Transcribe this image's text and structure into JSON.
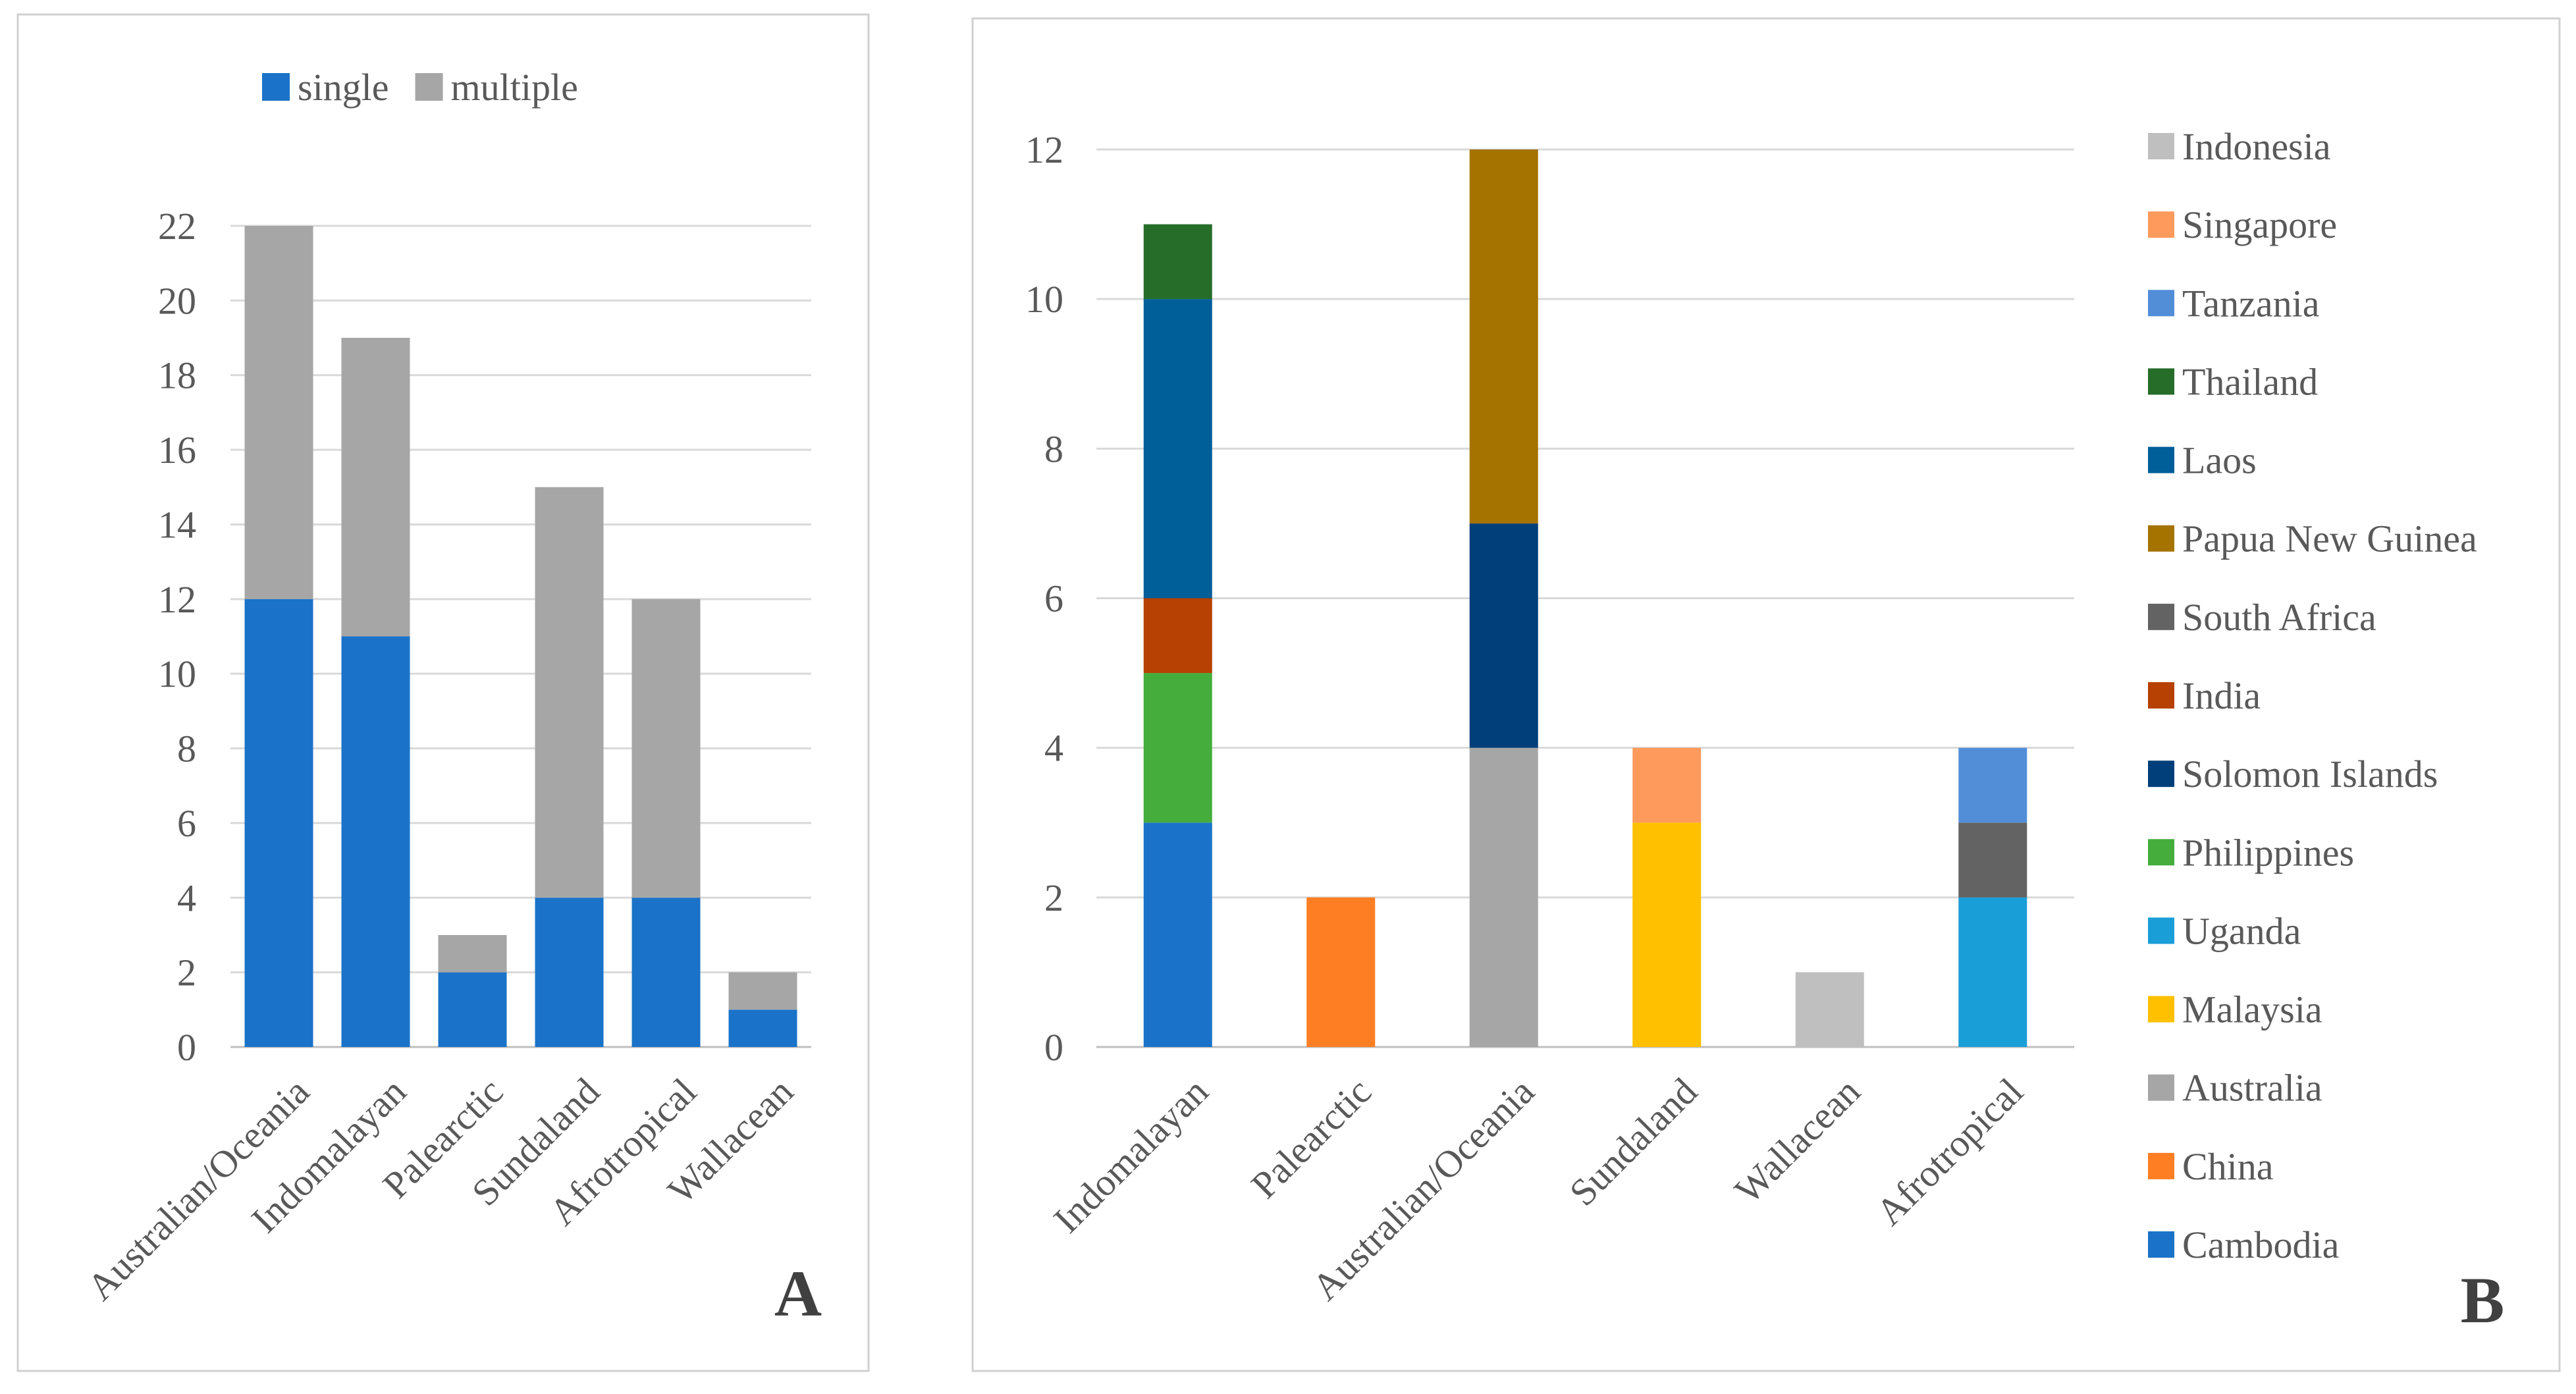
{
  "panels": [
    {
      "letter": "A",
      "chart_data": {
        "type": "bar",
        "stacked": true,
        "title": "",
        "xlabel": "",
        "ylabel": "",
        "ylim": [
          0,
          22
        ],
        "ytick_step": 2,
        "grid": true,
        "legend_position": "top",
        "categories": [
          "Australian/Oceania",
          "Indomalayan",
          "Palearctic",
          "Sundaland",
          "Afrotropical",
          "Wallacean"
        ],
        "series": [
          {
            "name": "single",
            "color": "#1a73c8",
            "values": [
              12,
              11,
              2,
              4,
              4,
              1
            ]
          },
          {
            "name": "multiple",
            "color": "#a6a6a6",
            "values": [
              10,
              8,
              1,
              11,
              8,
              1
            ]
          }
        ]
      }
    },
    {
      "letter": "B",
      "chart_data": {
        "type": "bar",
        "stacked": true,
        "title": "",
        "xlabel": "",
        "ylabel": "",
        "ylim": [
          0,
          12
        ],
        "ytick_step": 2,
        "grid": true,
        "legend_position": "right",
        "categories": [
          "Indomalayan",
          "Palearctic",
          "Australian/Oceania",
          "Sundaland",
          "Wallacean",
          "Afrotropical"
        ],
        "series": [
          {
            "name": "Cambodia",
            "color": "#1a73c8",
            "values": [
              3,
              0,
              0,
              0,
              0,
              0
            ]
          },
          {
            "name": "China",
            "color": "#fd7e23",
            "values": [
              0,
              2,
              0,
              0,
              0,
              0
            ]
          },
          {
            "name": "Australia",
            "color": "#a6a6a6",
            "values": [
              0,
              0,
              4,
              0,
              0,
              0
            ]
          },
          {
            "name": "Malaysia",
            "color": "#ffc000",
            "values": [
              0,
              0,
              0,
              3,
              0,
              0
            ]
          },
          {
            "name": "Uganda",
            "color": "#1a9ed8",
            "values": [
              0,
              0,
              0,
              0,
              0,
              2
            ]
          },
          {
            "name": "Philippines",
            "color": "#44ad3c",
            "values": [
              2,
              0,
              0,
              0,
              0,
              0
            ]
          },
          {
            "name": "Solomon Islands",
            "color": "#003f7a",
            "values": [
              0,
              0,
              3,
              0,
              0,
              0
            ]
          },
          {
            "name": "India",
            "color": "#b64102",
            "values": [
              1,
              0,
              0,
              0,
              0,
              0
            ]
          },
          {
            "name": "South Africa",
            "color": "#636363",
            "values": [
              0,
              0,
              0,
              0,
              0,
              1
            ]
          },
          {
            "name": "Papua New Guinea",
            "color": "#a47300",
            "values": [
              0,
              0,
              5,
              0,
              0,
              0
            ]
          },
          {
            "name": "Laos",
            "color": "#005e99",
            "values": [
              4,
              0,
              0,
              0,
              0,
              0
            ]
          },
          {
            "name": "Thailand",
            "color": "#266d2a",
            "values": [
              1,
              0,
              0,
              0,
              0,
              0
            ]
          },
          {
            "name": "Tanzania",
            "color": "#528ed8",
            "values": [
              0,
              0,
              0,
              0,
              0,
              1
            ]
          },
          {
            "name": "Singapore",
            "color": "#fe9a5c",
            "values": [
              0,
              0,
              0,
              1,
              0,
              0
            ]
          },
          {
            "name": "Indonesia",
            "color": "#bfbfbf",
            "values": [
              0,
              0,
              0,
              0,
              1,
              0
            ]
          }
        ]
      }
    }
  ]
}
